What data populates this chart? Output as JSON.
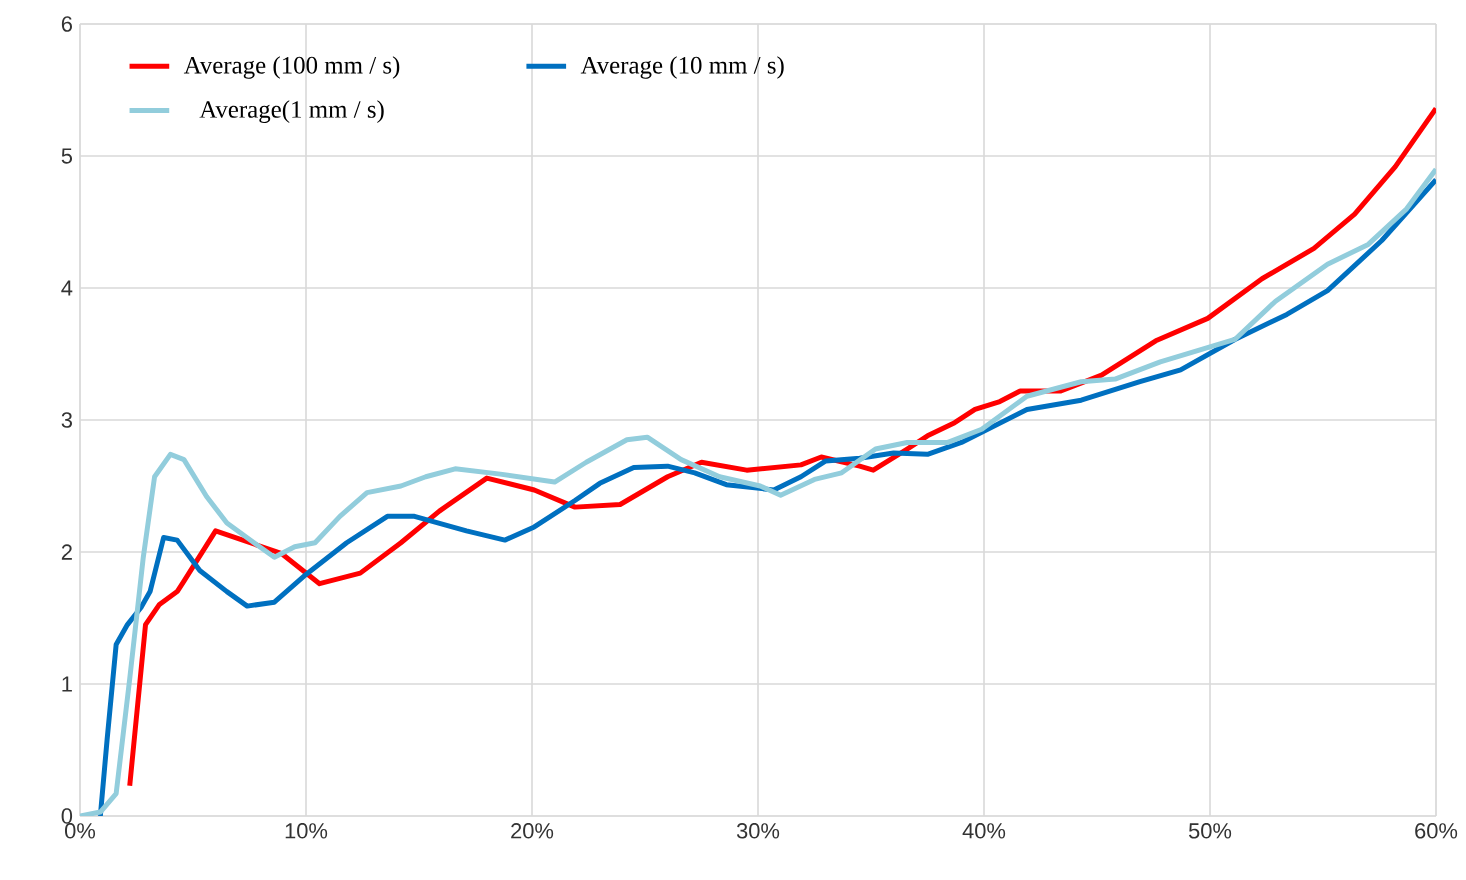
{
  "chart_data": {
    "type": "line",
    "xlim": [
      0,
      60
    ],
    "ylim": [
      0,
      6
    ],
    "xticks": [
      {
        "value": 0,
        "label": "0%"
      },
      {
        "value": 10,
        "label": "10%"
      },
      {
        "value": 20,
        "label": "20%"
      },
      {
        "value": 30,
        "label": "30%"
      },
      {
        "value": 40,
        "label": "40%"
      },
      {
        "value": 50,
        "label": "50%"
      },
      {
        "value": 60,
        "label": "60%"
      }
    ],
    "yticks": [
      0,
      1,
      2,
      3,
      4,
      5,
      6
    ],
    "grid": true,
    "legend": "top left",
    "marker": "none",
    "line_style": "solid",
    "series": [
      {
        "name": "Average (100 mm / s)",
        "color": "#ff0000",
        "x": [
          2.2,
          2.9,
          3.5,
          4.3,
          4.6,
          6.0,
          8.9,
          10.6,
          12.4,
          14.2,
          15.9,
          18.0,
          20.1,
          21.9,
          23.9,
          26.0,
          27.5,
          29.5,
          31.9,
          32.8,
          34.5,
          35.1,
          36.6,
          37.5,
          38.7,
          39.6,
          40.7,
          41.6,
          43.4,
          45.2,
          47.6,
          49.9,
          52.3,
          54.6,
          56.4,
          58.2,
          60.0
        ],
        "values": [
          0.23,
          1.45,
          1.6,
          1.7,
          1.78,
          2.16,
          1.99,
          1.76,
          1.84,
          2.07,
          2.31,
          2.56,
          2.47,
          2.34,
          2.36,
          2.57,
          2.68,
          2.62,
          2.66,
          2.72,
          2.65,
          2.62,
          2.78,
          2.88,
          2.98,
          3.08,
          3.14,
          3.22,
          3.22,
          3.34,
          3.6,
          3.77,
          4.07,
          4.3,
          4.56,
          4.92,
          5.36
        ]
      },
      {
        "name": "Average (10 mm / s)",
        "color": "#0070c0",
        "x": [
          0.9,
          1.2,
          1.6,
          2.1,
          2.7,
          3.1,
          3.7,
          4.3,
          5.3,
          6.5,
          7.4,
          8.6,
          10.0,
          11.8,
          13.6,
          14.8,
          17.1,
          18.8,
          20.1,
          21.9,
          23.0,
          24.5,
          26.0,
          27.2,
          28.6,
          30.7,
          31.9,
          33.0,
          34.5,
          36.0,
          37.5,
          39.0,
          41.9,
          44.3,
          46.9,
          48.7,
          51.1,
          53.4,
          55.2,
          57.6,
          60.0
        ],
        "values": [
          0,
          0.58,
          1.3,
          1.45,
          1.58,
          1.7,
          2.11,
          2.09,
          1.86,
          1.7,
          1.59,
          1.62,
          1.83,
          2.07,
          2.27,
          2.27,
          2.16,
          2.09,
          2.19,
          2.39,
          2.52,
          2.64,
          2.65,
          2.6,
          2.51,
          2.47,
          2.57,
          2.69,
          2.71,
          2.75,
          2.74,
          2.83,
          3.08,
          3.15,
          3.29,
          3.38,
          3.61,
          3.8,
          3.98,
          4.36,
          4.82
        ]
      },
      {
        "name": "Average(1 mm / s)",
        "color": "#92cddc",
        "x": [
          0,
          0.9,
          1.6,
          2.2,
          2.8,
          3.3,
          4.0,
          4.6,
          5.6,
          6.5,
          7.7,
          8.6,
          9.5,
          10.4,
          11.5,
          12.7,
          14.2,
          15.3,
          16.6,
          18.6,
          21.0,
          22.4,
          24.2,
          25.1,
          26.6,
          28.3,
          30.1,
          31.0,
          32.5,
          33.7,
          35.2,
          36.6,
          38.4,
          39.9,
          41.9,
          44.3,
          45.8,
          47.8,
          51.1,
          52.9,
          55.2,
          57.0,
          58.7,
          60.0
        ],
        "values": [
          0,
          0.03,
          0.17,
          1.04,
          1.96,
          2.57,
          2.74,
          2.7,
          2.42,
          2.22,
          2.07,
          1.96,
          2.04,
          2.07,
          2.27,
          2.45,
          2.5,
          2.57,
          2.63,
          2.59,
          2.53,
          2.68,
          2.85,
          2.87,
          2.7,
          2.57,
          2.5,
          2.43,
          2.55,
          2.6,
          2.78,
          2.83,
          2.83,
          2.93,
          3.18,
          3.29,
          3.31,
          3.44,
          3.61,
          3.9,
          4.18,
          4.33,
          4.6,
          4.9
        ]
      }
    ]
  }
}
